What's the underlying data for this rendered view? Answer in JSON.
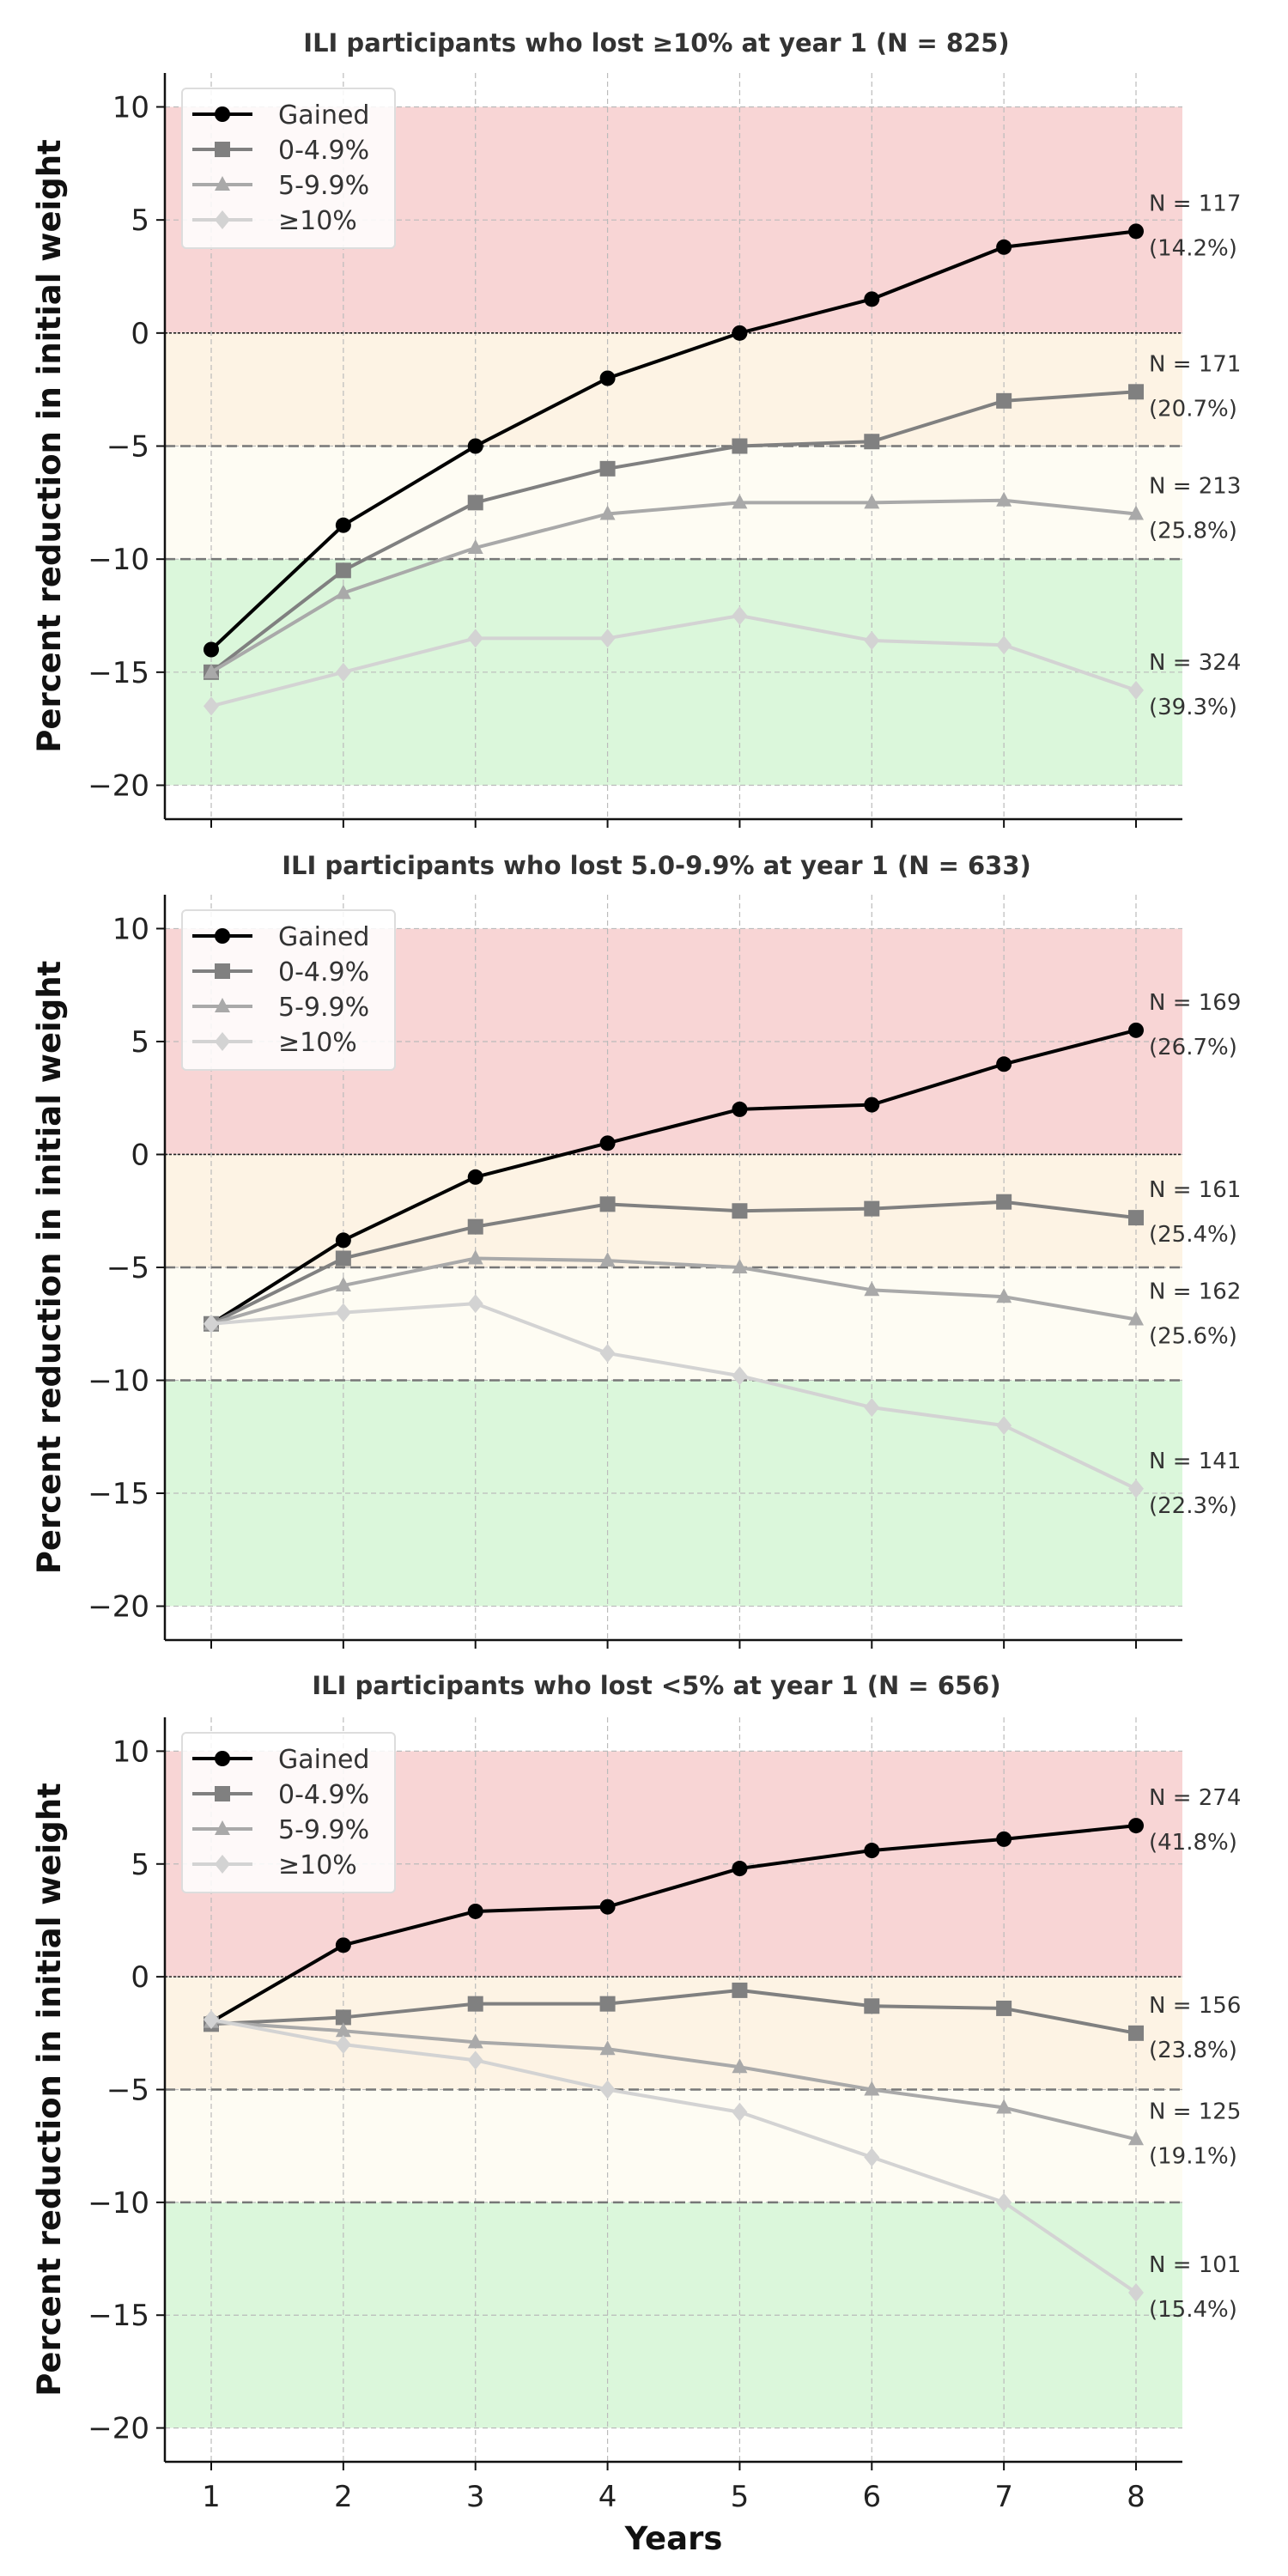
{
  "chart_data": [
    {
      "type": "line",
      "title": "ILI participants who lost ≥10% at year 1 (N = 825)",
      "xlabel": "",
      "ylabel": "Percent reduction in initial weight",
      "x": [
        1,
        2,
        3,
        4,
        5,
        6,
        7,
        8
      ],
      "ylim": [
        -21.5,
        11.5
      ],
      "yticks": [
        10,
        5,
        0,
        -5,
        -10,
        -15,
        -20
      ],
      "grid": true,
      "legend_placement": "top-left",
      "bands": [
        {
          "from": 0,
          "to": 10,
          "color": "#f8d5d5"
        },
        {
          "from": -5,
          "to": 0,
          "color": "#fdf3e4"
        },
        {
          "from": -10,
          "to": -5,
          "color": "#fefcf3"
        },
        {
          "from": -20,
          "to": -10,
          "color": "#dbf7db"
        }
      ],
      "series": [
        {
          "name": "Gained",
          "color": "#000000",
          "marker": "circle",
          "values": [
            -14,
            -8.5,
            -5,
            -2,
            0,
            1.5,
            3.8,
            4.5
          ],
          "annotation": [
            "N = 117",
            "(14.2%)"
          ]
        },
        {
          "name": "0-4.9%",
          "color": "#808080",
          "marker": "square",
          "values": [
            -15,
            -10.5,
            -7.5,
            -6,
            -5,
            -4.8,
            -3,
            -2.6
          ],
          "annotation": [
            "N = 171",
            "(20.7%)"
          ]
        },
        {
          "name": "5-9.9%",
          "color": "#a9a9a9",
          "marker": "triangle",
          "values": [
            -15,
            -11.5,
            -9.5,
            -8,
            -7.5,
            -7.5,
            -7.4,
            -8
          ],
          "annotation": [
            "N = 213",
            "(25.8%)"
          ]
        },
        {
          "name": "≥10%",
          "color": "#d3d3d3",
          "marker": "diamond",
          "values": [
            -16.5,
            -15,
            -13.5,
            -13.5,
            -12.5,
            -13.6,
            -13.8,
            -15.8
          ],
          "annotation": [
            "N = 324",
            "(39.3%)"
          ]
        }
      ]
    },
    {
      "type": "line",
      "title": "ILI participants who lost 5.0-9.9% at year 1 (N = 633)",
      "xlabel": "",
      "ylabel": "Percent reduction in initial weight",
      "x": [
        1,
        2,
        3,
        4,
        5,
        6,
        7,
        8
      ],
      "ylim": [
        -21.5,
        11.5
      ],
      "yticks": [
        10,
        5,
        0,
        -5,
        -10,
        -15,
        -20
      ],
      "grid": true,
      "legend_placement": "top-left",
      "bands": [
        {
          "from": 0,
          "to": 10,
          "color": "#f8d5d5"
        },
        {
          "from": -5,
          "to": 0,
          "color": "#fdf3e4"
        },
        {
          "from": -10,
          "to": -5,
          "color": "#fefcf3"
        },
        {
          "from": -20,
          "to": -10,
          "color": "#dbf7db"
        }
      ],
      "series": [
        {
          "name": "Gained",
          "color": "#000000",
          "marker": "circle",
          "values": [
            -7.5,
            -3.8,
            -1,
            0.5,
            2,
            2.2,
            4,
            5.5
          ],
          "annotation": [
            "N = 169",
            "(26.7%)"
          ]
        },
        {
          "name": "0-4.9%",
          "color": "#808080",
          "marker": "square",
          "values": [
            -7.5,
            -4.6,
            -3.2,
            -2.2,
            -2.5,
            -2.4,
            -2.1,
            -2.8
          ],
          "annotation": [
            "N = 161",
            "(25.4%)"
          ]
        },
        {
          "name": "5-9.9%",
          "color": "#a9a9a9",
          "marker": "triangle",
          "values": [
            -7.5,
            -5.8,
            -4.6,
            -4.7,
            -5,
            -6,
            -6.3,
            -7.3
          ],
          "annotation": [
            "N = 162",
            "(25.6%)"
          ]
        },
        {
          "name": "≥10%",
          "color": "#d3d3d3",
          "marker": "diamond",
          "values": [
            -7.5,
            -7,
            -6.6,
            -8.8,
            -9.8,
            -11.2,
            -12,
            -14.8
          ],
          "annotation": [
            "N = 141",
            "(22.3%)"
          ]
        }
      ]
    },
    {
      "type": "line",
      "title": "ILI participants who lost <5% at year 1 (N = 656)",
      "xlabel": "Years",
      "ylabel": "Percent reduction in initial weight",
      "x": [
        1,
        2,
        3,
        4,
        5,
        6,
        7,
        8
      ],
      "xticks": [
        "1",
        "2",
        "3",
        "4",
        "5",
        "6",
        "7",
        "8"
      ],
      "ylim": [
        -21.5,
        11.5
      ],
      "yticks": [
        10,
        5,
        0,
        -5,
        -10,
        -15,
        -20
      ],
      "grid": true,
      "legend_placement": "top-left",
      "bands": [
        {
          "from": 0,
          "to": 10,
          "color": "#f8d5d5"
        },
        {
          "from": -5,
          "to": 0,
          "color": "#fdf3e4"
        },
        {
          "from": -10,
          "to": -5,
          "color": "#fefcf3"
        },
        {
          "from": -20,
          "to": -10,
          "color": "#dbf7db"
        }
      ],
      "series": [
        {
          "name": "Gained",
          "color": "#000000",
          "marker": "circle",
          "values": [
            -2,
            1.4,
            2.9,
            3.1,
            4.8,
            5.6,
            6.1,
            6.7
          ],
          "annotation": [
            "N = 274",
            "(41.8%)"
          ]
        },
        {
          "name": "0-4.9%",
          "color": "#808080",
          "marker": "square",
          "values": [
            -2.1,
            -1.8,
            -1.2,
            -1.2,
            -0.6,
            -1.3,
            -1.4,
            -2.5
          ],
          "annotation": [
            "N = 156",
            "(23.8%)"
          ]
        },
        {
          "name": "5-9.9%",
          "color": "#a9a9a9",
          "marker": "triangle",
          "values": [
            -2,
            -2.4,
            -2.9,
            -3.2,
            -4,
            -5,
            -5.8,
            -7.2
          ],
          "annotation": [
            "N = 125",
            "(19.1%)"
          ]
        },
        {
          "name": "≥10%",
          "color": "#d3d3d3",
          "marker": "diamond",
          "values": [
            -1.9,
            -3,
            -3.7,
            -5,
            -6,
            -8,
            -10,
            -14
          ],
          "annotation": [
            "N = 101",
            "(15.4%)"
          ]
        }
      ]
    }
  ]
}
